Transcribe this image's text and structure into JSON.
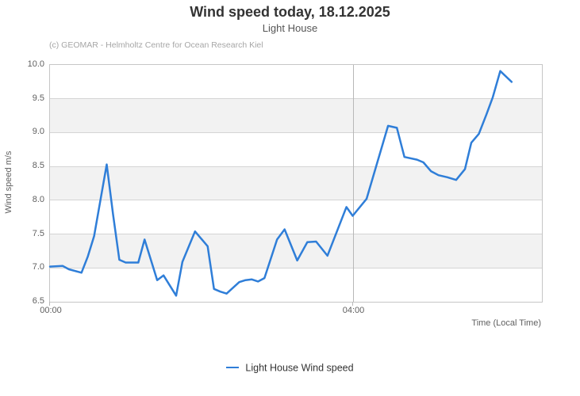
{
  "chart_data": {
    "type": "line",
    "title": "Wind speed today, 18.12.2025",
    "subtitle": "Light House",
    "credits": "(c) GEOMAR - Helmholtz Centre for Ocean Research Kiel",
    "xlabel": "Time (Local Time)",
    "ylabel": "Wind speed  m/s",
    "x_unit": "minutes since 00:00 local time",
    "xlim": [
      0,
      390
    ],
    "ylim": [
      6.5,
      10.0
    ],
    "ytick_labels_top_down": [
      "10.0",
      "9.5",
      "9.0",
      "8.5",
      "8.0",
      "7.5",
      "7.0",
      "6.5"
    ],
    "xticks": [
      {
        "pos": 0,
        "label": "00:00"
      },
      {
        "pos": 240,
        "label": "04:00"
      }
    ],
    "grid": true,
    "alternating_bands": true,
    "legend_position": "bottom-center",
    "legend": [
      {
        "name": "Light House Wind speed",
        "color": "#2f7ed8"
      }
    ],
    "series": [
      {
        "name": "Light House Wind speed",
        "points": [
          [
            0,
            7.02
          ],
          [
            10,
            7.03
          ],
          [
            15,
            6.98
          ],
          [
            25,
            6.93
          ],
          [
            30,
            7.17
          ],
          [
            35,
            7.47
          ],
          [
            45,
            8.53
          ],
          [
            50,
            7.79
          ],
          [
            55,
            7.12
          ],
          [
            60,
            7.08
          ],
          [
            70,
            7.08
          ],
          [
            75,
            7.42
          ],
          [
            85,
            6.82
          ],
          [
            90,
            6.89
          ],
          [
            100,
            6.59
          ],
          [
            105,
            7.09
          ],
          [
            115,
            7.54
          ],
          [
            125,
            7.32
          ],
          [
            130,
            6.69
          ],
          [
            135,
            6.65
          ],
          [
            140,
            6.62
          ],
          [
            150,
            6.79
          ],
          [
            155,
            6.82
          ],
          [
            160,
            6.83
          ],
          [
            165,
            6.8
          ],
          [
            170,
            6.85
          ],
          [
            180,
            7.42
          ],
          [
            186,
            7.57
          ],
          [
            196,
            7.11
          ],
          [
            204,
            7.38
          ],
          [
            211,
            7.39
          ],
          [
            220,
            7.18
          ],
          [
            235,
            7.9
          ],
          [
            240,
            7.77
          ],
          [
            251,
            8.02
          ],
          [
            268,
            9.1
          ],
          [
            275,
            9.07
          ],
          [
            281,
            8.64
          ],
          [
            291,
            8.6
          ],
          [
            296,
            8.56
          ],
          [
            302,
            8.43
          ],
          [
            308,
            8.37
          ],
          [
            315,
            8.34
          ],
          [
            322,
            8.3
          ],
          [
            329,
            8.46
          ],
          [
            334,
            8.85
          ],
          [
            340,
            8.98
          ],
          [
            346,
            9.27
          ],
          [
            351,
            9.52
          ],
          [
            357,
            9.91
          ],
          [
            366,
            9.75
          ]
        ]
      }
    ],
    "colors": {
      "line": "#2f7ed8",
      "grid_h": "#d4d4d4",
      "grid_v": "#b8b8b8",
      "band": "#f2f2f2",
      "plot_border": "#c6c6c6"
    }
  }
}
